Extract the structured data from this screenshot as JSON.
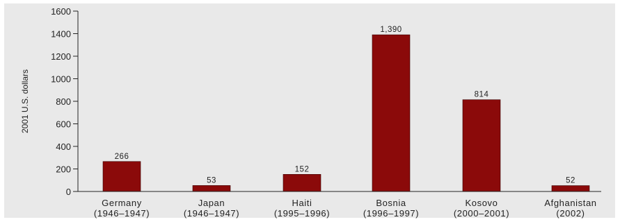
{
  "chart_data": {
    "type": "bar",
    "ylabel": "2001 U.S. dollars",
    "ylim": [
      0,
      1600
    ],
    "yticks": [
      0,
      200,
      400,
      600,
      800,
      1000,
      1200,
      1400,
      1600
    ],
    "ytick_labels": [
      "0",
      "200",
      "400",
      "600",
      "800",
      "1000",
      "1200",
      "1400",
      "1600"
    ],
    "categories": [
      {
        "name": "Germany",
        "period": "(1946–1947)"
      },
      {
        "name": "Japan",
        "period": "(1946–1947)"
      },
      {
        "name": "Haiti",
        "period": "(1995–1996)"
      },
      {
        "name": "Bosnia",
        "period": "(1996–1997)"
      },
      {
        "name": "Kosovo",
        "period": "(2000–2001)"
      },
      {
        "name": "Afghanistan",
        "period": "(2002)"
      }
    ],
    "values": [
      266,
      53,
      152,
      1390,
      814,
      52
    ],
    "value_labels": [
      "266",
      "53",
      "152",
      "1,390",
      "814",
      "52"
    ],
    "bar_color": "#8b0a0a",
    "grid": false
  }
}
